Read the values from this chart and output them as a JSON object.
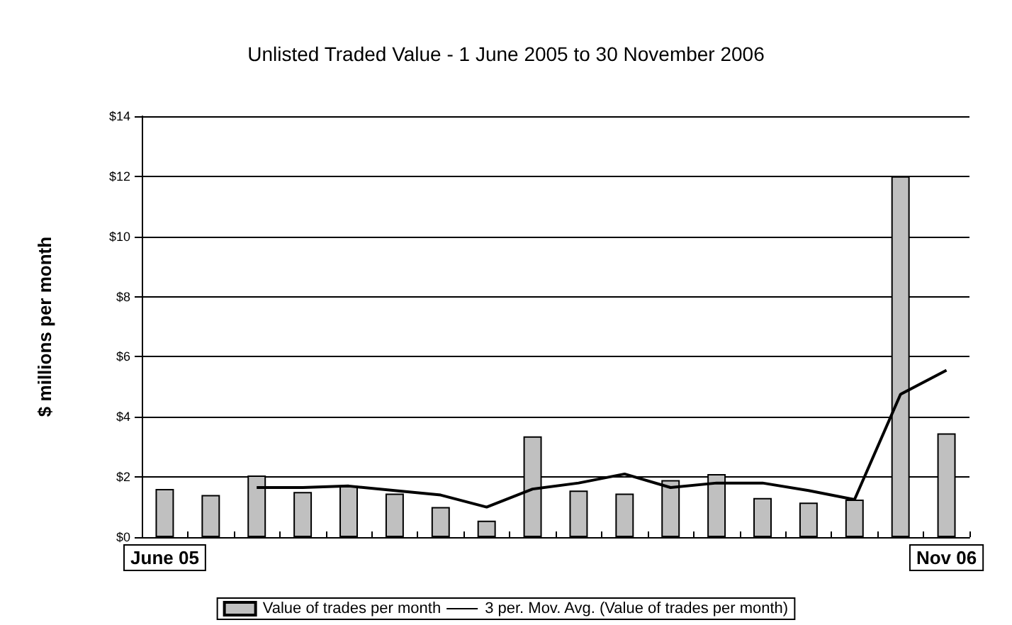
{
  "chart_data": {
    "type": "bar",
    "title": "Unlisted Traded Value - 1 June 2005 to 30 November 2006",
    "ylabel": "$ millions per month",
    "categories": [
      "June 05",
      null,
      null,
      null,
      null,
      null,
      null,
      null,
      null,
      null,
      null,
      null,
      null,
      null,
      null,
      null,
      null,
      "Nov 06"
    ],
    "series": [
      {
        "name": "Value of trades per month",
        "color": "#c0c0c0",
        "values": [
          1.6,
          1.4,
          2.05,
          1.5,
          1.7,
          1.45,
          1.0,
          0.55,
          3.35,
          1.55,
          1.45,
          1.9,
          2.1,
          1.3,
          1.15,
          1.25,
          12.0,
          3.45
        ]
      },
      {
        "name": "3 per. Mov. Avg. (Value of trades per month)",
        "type": "line",
        "color": "#000000",
        "marker": "none",
        "values": [
          null,
          null,
          1.65,
          1.65,
          1.7,
          1.55,
          1.4,
          1.0,
          1.6,
          1.8,
          2.1,
          1.65,
          1.8,
          1.8,
          1.55,
          1.25,
          4.75,
          5.55
        ]
      }
    ],
    "ylim": [
      0,
      14
    ],
    "yticks": [
      {
        "value": 0,
        "label": "$0"
      },
      {
        "value": 2,
        "label": "$2"
      },
      {
        "value": 4,
        "label": "$4"
      },
      {
        "value": 6,
        "label": "$6"
      },
      {
        "value": 8,
        "label": "$8"
      },
      {
        "value": 10,
        "label": "$10"
      },
      {
        "value": 12,
        "label": "$12"
      },
      {
        "value": 14,
        "label": "$14"
      }
    ],
    "grid": "y",
    "legend": "bottom"
  }
}
